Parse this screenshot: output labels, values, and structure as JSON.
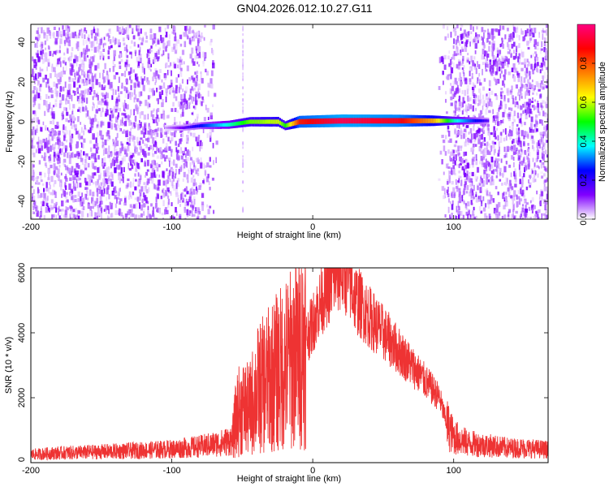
{
  "figure": {
    "title": "GN04.2026.012.10.27.G11"
  },
  "chart_data": [
    {
      "type": "heatmap",
      "xlabel": "Height of straight line (km)",
      "ylabel": "Frequency (Hz)",
      "xlim": [
        -200,
        167
      ],
      "ylim": [
        -49,
        49
      ],
      "x_ticks": [
        -200,
        -100,
        0,
        100
      ],
      "y_ticks": [
        -40,
        -20,
        0,
        20,
        40
      ],
      "noise_regions_x": [
        [
          -200,
          -68
        ],
        [
          88,
          167
        ]
      ],
      "quiet_region_x": [
        -62,
        88
      ],
      "signal_track": [
        {
          "x": -105,
          "y": -3,
          "amplitude": 0.05
        },
        {
          "x": -92,
          "y": -3,
          "amplitude": 0.15
        },
        {
          "x": -80,
          "y": -2,
          "amplitude": 0.25
        },
        {
          "x": -60,
          "y": -1.5,
          "amplitude": 0.4
        },
        {
          "x": -45,
          "y": 0,
          "amplitude": 0.55
        },
        {
          "x": -25,
          "y": 0,
          "amplitude": 0.6
        },
        {
          "x": -20,
          "y": -2,
          "amplitude": 0.5
        },
        {
          "x": -10,
          "y": 0,
          "amplitude": 0.85
        },
        {
          "x": 20,
          "y": 0.5,
          "amplitude": 0.95
        },
        {
          "x": 60,
          "y": 0.5,
          "amplitude": 0.9
        },
        {
          "x": 85,
          "y": 0.5,
          "amplitude": 0.7
        },
        {
          "x": 100,
          "y": 0.5,
          "amplitude": 0.4
        },
        {
          "x": 115,
          "y": 0.5,
          "amplitude": 0.25
        },
        {
          "x": 125,
          "y": 0.5,
          "amplitude": 0.15
        }
      ],
      "colorbar": {
        "label": "Normalized spectral amplitude",
        "range": [
          0,
          1
        ],
        "ticks": [
          "0.0",
          "0.2",
          "0.4",
          "0.6",
          "0.8"
        ],
        "tick_values": [
          0,
          0.2,
          0.4,
          0.6,
          0.8
        ],
        "colors": [
          "#ffffff",
          "#8000ff",
          "#0000ff",
          "#00ffff",
          "#00ff00",
          "#ffff00",
          "#ff8000",
          "#ff0000",
          "#ff0080"
        ]
      }
    },
    {
      "type": "line",
      "xlabel": "Height of straight line (km)",
      "ylabel": "SNR (10 * v/v)",
      "xlim": [
        -200,
        167
      ],
      "ylim": [
        0,
        6000
      ],
      "x_ticks": [
        -200,
        -100,
        0,
        100
      ],
      "y_ticks": [
        0,
        2000,
        4000,
        6000
      ],
      "color": "#ee3333",
      "series": [
        {
          "x": [
            -200,
            -180,
            -160,
            -140,
            -120,
            -100,
            -80,
            -65,
            -57,
            -54,
            -50,
            -45,
            -40,
            -35,
            -30,
            -25,
            -20,
            -15,
            -10,
            -5,
            0,
            5,
            10,
            15,
            20,
            25,
            30,
            40,
            50,
            60,
            70,
            80,
            90,
            95,
            100,
            110,
            120,
            130,
            140,
            150,
            160,
            167
          ],
          "values": [
            250,
            300,
            320,
            350,
            380,
            420,
            500,
            600,
            700,
            1500,
            1700,
            1600,
            2200,
            2400,
            2600,
            2800,
            3000,
            3200,
            3400,
            3800,
            4300,
            4900,
            5300,
            5700,
            5900,
            5700,
            5100,
            4500,
            4000,
            3500,
            3000,
            2500,
            2000,
            1200,
            800,
            600,
            550,
            500,
            450,
            450,
            420,
            400
          ]
        }
      ]
    }
  ]
}
